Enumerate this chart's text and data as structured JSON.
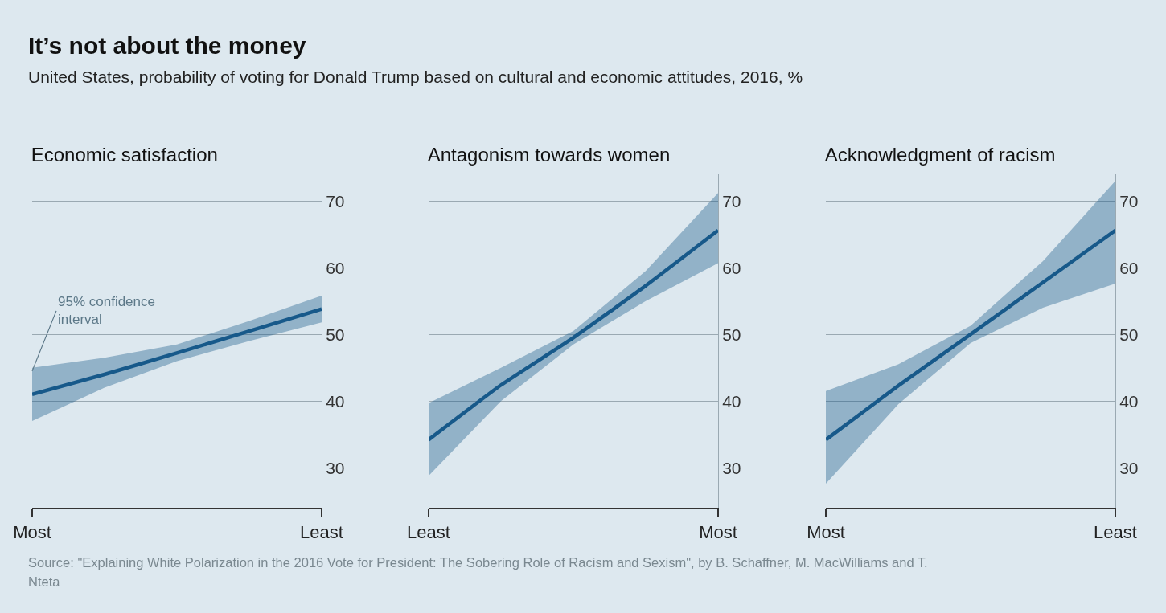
{
  "chart_data": [
    {
      "type": "other",
      "title": "It’s not about the money",
      "subtitle": "United States, probability of voting for Donald Trump based on cultural and economic attitudes, 2016, %",
      "annotations": [
        "Source: \"Explaining White Polarization in the 2016 Vote for President: The Sobering Role of Racism and Sexism\", by B. Schaffner, M. MacWilliams and T. Nteta"
      ]
    },
    {
      "type": "line",
      "title": "Economic satisfaction",
      "categories": [
        "Most",
        null,
        null,
        null,
        "Least"
      ],
      "ylim": [
        24,
        74
      ],
      "yticks": [
        30,
        40,
        50,
        60,
        70
      ],
      "grid": "y",
      "series": [
        {
          "color": "#17598a",
          "values": [
            41,
            44,
            47.2,
            50.5,
            53.8
          ],
          "lower": [
            37,
            42,
            46,
            49,
            51.8
          ],
          "upper": [
            45,
            46.5,
            48.5,
            52,
            55.8
          ]
        }
      ],
      "annotations": [
        {
          "text": "95% confidence interval",
          "x": "Most",
          "y": 44.5
        }
      ]
    },
    {
      "type": "line",
      "title": "Antagonism towards women",
      "categories": [
        "Least",
        null,
        null,
        null,
        "Most"
      ],
      "ylim": [
        24,
        74
      ],
      "yticks": [
        30,
        40,
        50,
        60,
        70
      ],
      "grid": "y",
      "series": [
        {
          "color": "#17598a",
          "values": [
            34.2,
            42.4,
            49.5,
            57.3,
            65.6
          ],
          "lower": [
            28.8,
            40,
            48.5,
            55,
            60.7
          ],
          "upper": [
            39.7,
            45,
            50.5,
            59.5,
            71.2
          ]
        }
      ]
    },
    {
      "type": "line",
      "title": "Acknowledgment of racism",
      "categories": [
        "Most",
        null,
        null,
        null,
        "Least"
      ],
      "ylim": [
        24,
        74
      ],
      "yticks": [
        30,
        40,
        50,
        60,
        70
      ],
      "grid": "y",
      "series": [
        {
          "color": "#17598a",
          "values": [
            34.2,
            42.3,
            50,
            57.8,
            65.6
          ],
          "lower": [
            27.6,
            39.5,
            48.7,
            54,
            57.6
          ],
          "upper": [
            41.5,
            45.5,
            51.3,
            61,
            73
          ]
        }
      ]
    }
  ]
}
